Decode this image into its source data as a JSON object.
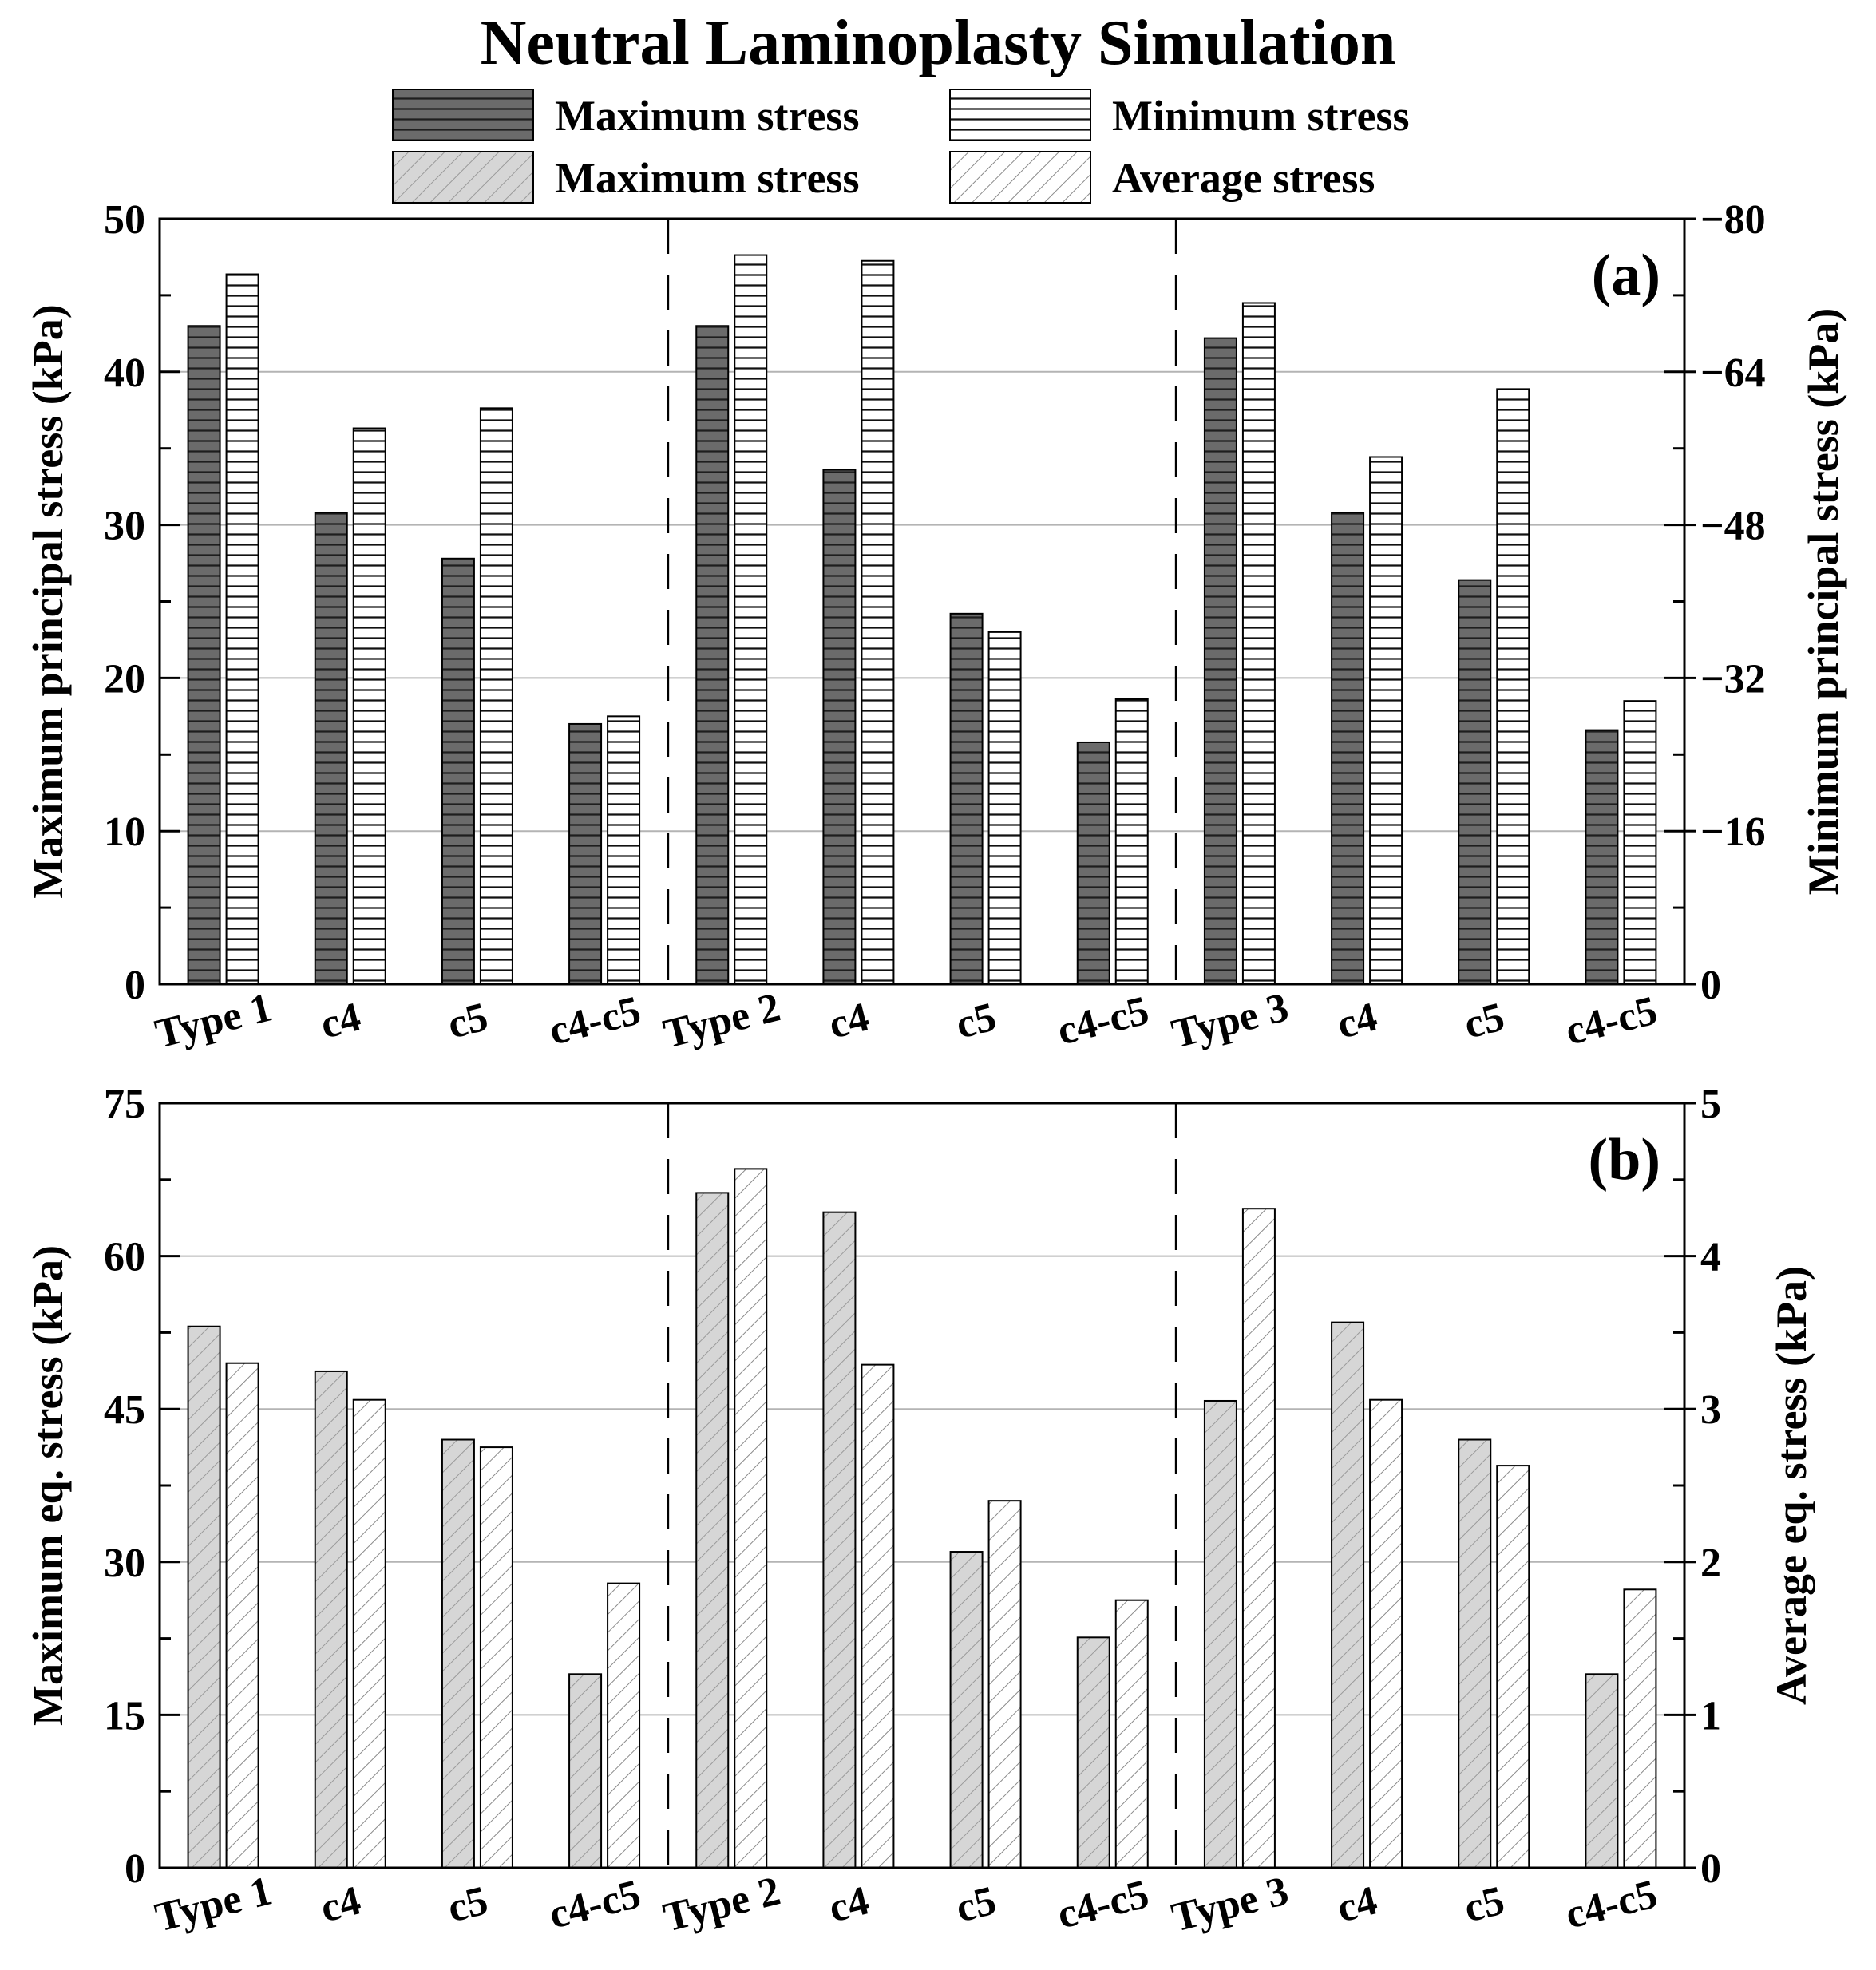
{
  "figure_title": "Neutral Laminoplasty Simulation",
  "legend": [
    {
      "label": "Maximum stress",
      "style": "dark-horizontal"
    },
    {
      "label": "Minimum stress",
      "style": "white-horizontal"
    },
    {
      "label": "Maximum stress",
      "style": "gray-diagonal"
    },
    {
      "label": "Average stress",
      "style": "white-diagonal"
    }
  ],
  "colors": {
    "dark_bar": "#6b6b6b",
    "light_bar": "#d6d6d6",
    "white_bar": "#ffffff",
    "grid": "#b4b4b4",
    "axis": "#000000"
  },
  "chart_data": [
    {
      "type": "bar",
      "panel_label": "(a)",
      "categories": [
        "Type 1",
        "c4",
        "c5",
        "c4-c5",
        "Type 2",
        "c4",
        "c5",
        "c4-c5",
        "Type 3",
        "c4",
        "c5",
        "c4-c5"
      ],
      "group_separators_after": [
        4,
        8
      ],
      "left_axis": {
        "label": "Maximum principal stress (kPa)",
        "ylim": [
          0,
          50
        ],
        "ticks": [
          "0",
          "10",
          "20",
          "30",
          "40",
          "50"
        ]
      },
      "right_axis": {
        "label": "Minimum principal stress (kPa)",
        "ylim": [
          0,
          -80
        ],
        "ticks": [
          "0",
          "−16",
          "−32",
          "−48",
          "−64",
          "−80"
        ]
      },
      "series": [
        {
          "name": "Maximum stress",
          "axis": "left",
          "style": "dark-horizontal",
          "values": [
            43.0,
            30.8,
            27.8,
            17.0,
            43.0,
            33.6,
            24.2,
            15.8,
            42.2,
            30.8,
            26.4,
            16.6
          ]
        },
        {
          "name": "Minimum stress",
          "axis": "right",
          "style": "white-horizontal",
          "values": [
            -74.2,
            -58.1,
            -60.2,
            -28.0,
            -76.2,
            -75.6,
            -36.8,
            -29.8,
            -71.2,
            -55.1,
            -62.2,
            -29.6
          ]
        }
      ]
    },
    {
      "type": "bar",
      "panel_label": "(b)",
      "categories": [
        "Type 1",
        "c4",
        "c5",
        "c4-c5",
        "Type 2",
        "c4",
        "c5",
        "c4-c5",
        "Type 3",
        "c4",
        "c5",
        "c4-c5"
      ],
      "group_separators_after": [
        4,
        8
      ],
      "left_axis": {
        "label": "Maximum eq. stress (kPa)",
        "ylim": [
          0,
          75
        ],
        "ticks": [
          "0",
          "15",
          "30",
          "45",
          "60",
          "75"
        ]
      },
      "right_axis": {
        "label": "Average eq. stress (kPa)",
        "ylim": [
          0,
          5
        ],
        "ticks": [
          "0",
          "1",
          "2",
          "3",
          "4",
          "5"
        ]
      },
      "series": [
        {
          "name": "Maximum stress",
          "axis": "left",
          "style": "gray-diagonal",
          "values": [
            53.1,
            48.7,
            42.0,
            19.0,
            66.2,
            64.3,
            31.0,
            22.6,
            45.8,
            53.5,
            42.0,
            19.0
          ]
        },
        {
          "name": "Average stress",
          "axis": "right",
          "style": "white-diagonal",
          "values": [
            3.3,
            3.06,
            2.75,
            1.86,
            4.57,
            3.29,
            2.4,
            1.75,
            4.31,
            3.06,
            2.63,
            1.82
          ]
        }
      ]
    }
  ]
}
